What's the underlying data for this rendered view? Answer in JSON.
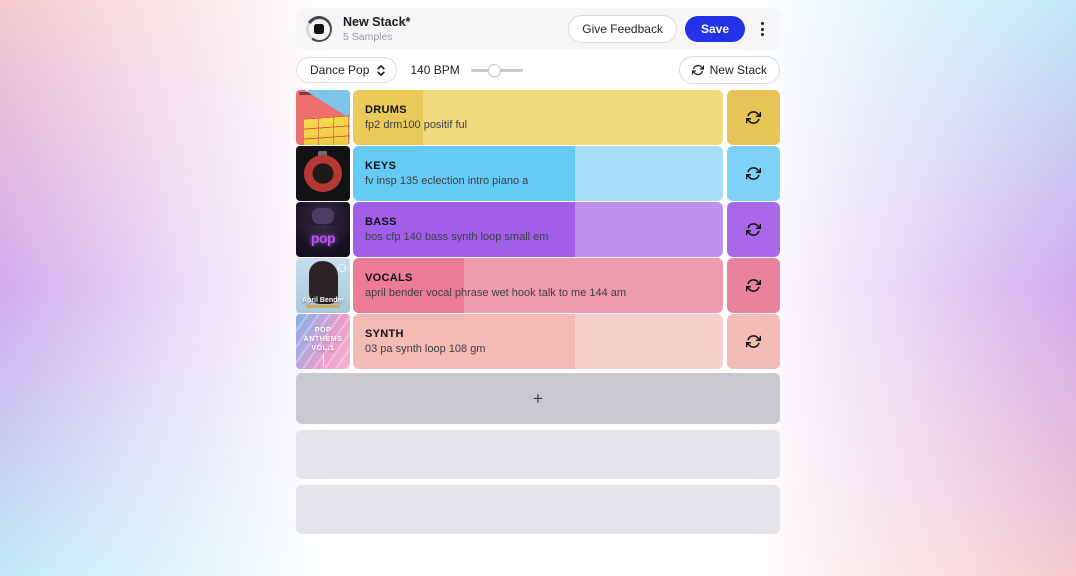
{
  "header": {
    "title": "New Stack*",
    "subtitle": "5 Samples",
    "feedback_label": "Give Feedback",
    "save_label": "Save"
  },
  "controls": {
    "genre": "Dance Pop",
    "bpm_label": "140 BPM",
    "bpm_slider_percent": 45,
    "new_stack_label": "New Stack"
  },
  "tracks": [
    {
      "name": "DRUMS",
      "description": "fp2 drm100 positif ful",
      "progress_percent": 19,
      "color_dark": "#e9ca58",
      "color_light": "#efda7e",
      "button_color": "#e6c455"
    },
    {
      "name": "KEYS",
      "description": "fv insp 135 eclection intro piano a",
      "progress_percent": 60,
      "color_dark": "#66cbf4",
      "color_light": "#a5def9",
      "button_color": "#7fd2f7"
    },
    {
      "name": "BASS",
      "description": "bos cfp 140 bass synth loop small em",
      "progress_percent": 60,
      "color_dark": "#a15fe9",
      "color_light": "#bd90f2",
      "button_color": "#a968ea",
      "art_text": "pop"
    },
    {
      "name": "VOCALS",
      "description": "april bender vocal phrase wet hook talk to me 144 am",
      "progress_percent": 30,
      "color_dark": "#ec7b97",
      "color_light": "#f09aae",
      "button_color": "#e9829c",
      "art_text": "April Bender"
    },
    {
      "name": "SYNTH",
      "description": "03 pa synth loop 108 gm",
      "progress_percent": 60,
      "color_dark": "#f4bab4",
      "color_light": "#f8cfc9",
      "button_color": "#f3bcb6",
      "art_text": "POP ANTHEMS VOL.1"
    }
  ],
  "placeholders": {
    "add_label": "+",
    "empty_slot_count": 2
  },
  "colors": {
    "save_button": "#2433e8",
    "header_bg": "#f6f6f8",
    "bg_pink": "#f6c9ce",
    "bg_purple": "#d2abee",
    "bg_cyan": "#c0e9f8",
    "add_row_bg": "#c9c9cd",
    "empty_row_bg": "#e5e5e9"
  }
}
